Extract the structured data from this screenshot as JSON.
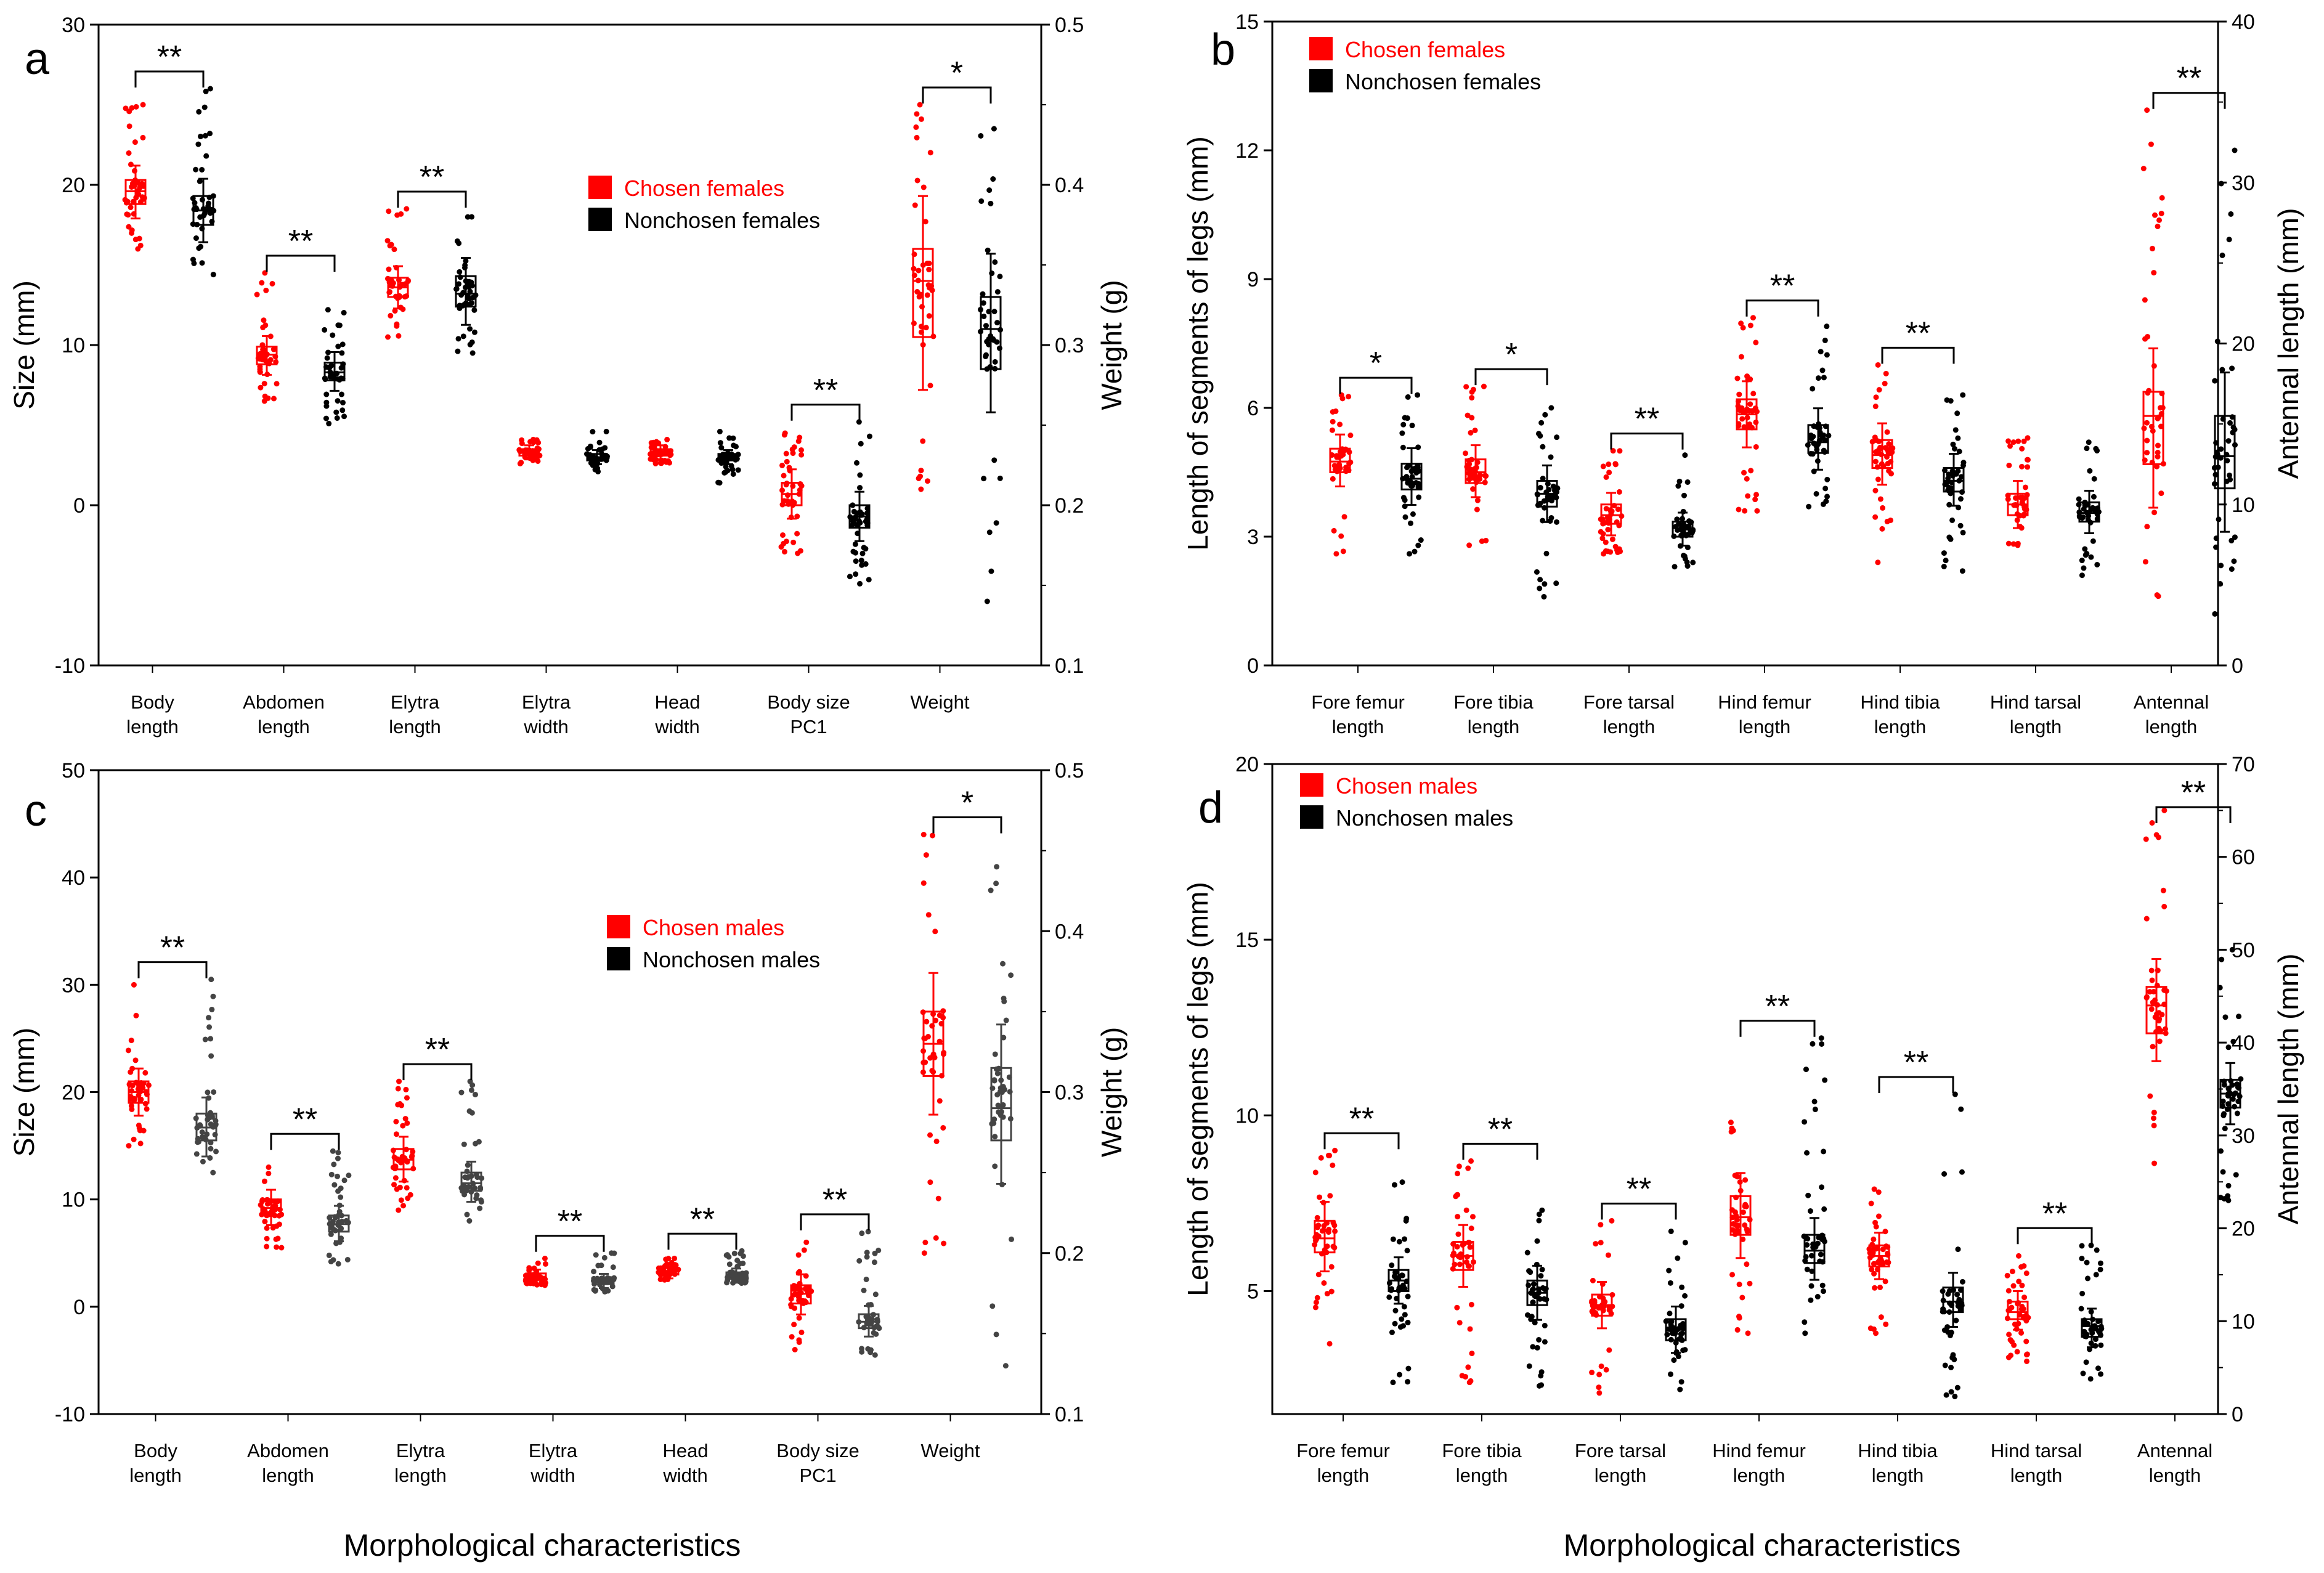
{
  "figure": {
    "xlabel_bottom_left": "Morphological characteristics",
    "xlabel_bottom_right": "Morphological characteristics"
  },
  "colors": {
    "chosen": "#ff0000",
    "nonchosen": "#000000",
    "nonchosen_c": "#444444"
  },
  "chart_data": [
    {
      "id": "a",
      "type": "box-scatter",
      "panel_label": "a",
      "ylabel": "Size (mm)",
      "y2label": "Weight (g)",
      "ylim": [
        -10,
        30
      ],
      "yticks": [
        -10,
        0,
        10,
        20,
        30
      ],
      "y2lim": [
        0.1,
        0.5
      ],
      "y2ticks": [
        0.1,
        0.2,
        0.3,
        0.4,
        0.5
      ],
      "legend": [
        "Chosen females",
        "Nonchosen females"
      ],
      "categories": [
        "Body\nlength",
        "Abdomen\nlength",
        "Elytra\nlength",
        "Elytra\nwidth",
        "Head\nwidth",
        "Body size\nPC1",
        "Weight"
      ],
      "secondary_categories": [
        6
      ],
      "series": [
        {
          "name": "Chosen females",
          "boxes": [
            [
              18.8,
              19.6,
              20.3,
              16,
              25
            ],
            [
              8.8,
              9.4,
              9.9,
              6.5,
              14.5
            ],
            [
              13,
              13.6,
              14.2,
              10.5,
              18.5
            ],
            [
              3.1,
              3.3,
              3.5,
              2.6,
              4.1
            ],
            [
              3.1,
              3.3,
              3.5,
              2.6,
              4.1
            ],
            [
              0,
              0.7,
              1.4,
              -3,
              4.5
            ],
            [
              0.305,
              0.34,
              0.36,
              0.21,
              0.45
            ]
          ]
        },
        {
          "name": "Nonchosen females",
          "boxes": [
            [
              17.5,
              18.4,
              19.3,
              14.4,
              26
            ],
            [
              7.8,
              8.3,
              8.9,
              5.1,
              12.2
            ],
            [
              12.4,
              13.2,
              14.3,
              9.5,
              18
            ],
            [
              2.8,
              3,
              3.2,
              2.1,
              4.6
            ],
            [
              2.8,
              3,
              3.2,
              1.4,
              4.6
            ],
            [
              -1.4,
              -0.7,
              0,
              -4.9,
              5.2
            ],
            [
              0.285,
              0.31,
              0.33,
              0.14,
              0.435
            ]
          ]
        }
      ],
      "annotations": [
        {
          "cat": 0,
          "text": "**"
        },
        {
          "cat": 1,
          "text": "**"
        },
        {
          "cat": 2,
          "text": "**"
        },
        {
          "cat": 5,
          "text": "**"
        },
        {
          "cat": 6,
          "text": "*"
        }
      ]
    },
    {
      "id": "b",
      "type": "box-scatter",
      "panel_label": "b",
      "ylabel": "Length of segments of legs (mm)",
      "y2label": "Antennal length (mm)",
      "ylim": [
        0,
        15
      ],
      "yticks": [
        0,
        3,
        6,
        9,
        12,
        15
      ],
      "y2lim": [
        0,
        40
      ],
      "y2ticks": [
        0,
        10,
        20,
        30,
        40
      ],
      "legend": [
        "Chosen females",
        "Nonchosen females"
      ],
      "categories": [
        "Fore femur\nlength",
        "Fore tibia\nlength",
        "Fore tarsal\nlength",
        "Hind femur\nlength",
        "Hind tibia\nlength",
        "Hind tarsal\nlength",
        "Antennal\nlength"
      ],
      "secondary_categories": [
        6
      ],
      "series": [
        {
          "name": "Chosen females",
          "boxes": [
            [
              4.5,
              4.75,
              5.05,
              2.6,
              6.3
            ],
            [
              4.25,
              4.5,
              4.8,
              2.8,
              6.5
            ],
            [
              3.3,
              3.5,
              3.75,
              2.6,
              5
            ],
            [
              5.5,
              5.85,
              6.2,
              3.6,
              8.1
            ],
            [
              4.6,
              4.9,
              5.25,
              2.4,
              7
            ],
            [
              3.5,
              3.75,
              4,
              2.8,
              5.3
            ],
            [
              12.5,
              15.5,
              17,
              4.3,
              34.5
            ]
          ]
        },
        {
          "name": "Nonchosen females",
          "boxes": [
            [
              4.1,
              4.35,
              4.7,
              2.6,
              6.3
            ],
            [
              3.7,
              4,
              4.3,
              1.6,
              6
            ],
            [
              3,
              3.2,
              3.35,
              2.3,
              4.9
            ],
            [
              4.95,
              5.2,
              5.6,
              3.7,
              7.9
            ],
            [
              4.05,
              4.3,
              4.6,
              2.2,
              6.3
            ],
            [
              3.35,
              3.55,
              3.8,
              2.1,
              5.2
            ],
            [
              11,
              13,
              15.5,
              3.2,
              32
            ]
          ]
        }
      ],
      "annotations": [
        {
          "cat": 0,
          "text": "*"
        },
        {
          "cat": 1,
          "text": "*"
        },
        {
          "cat": 2,
          "text": "**"
        },
        {
          "cat": 3,
          "text": "**"
        },
        {
          "cat": 4,
          "text": "**"
        },
        {
          "cat": 6,
          "text": "**"
        }
      ]
    },
    {
      "id": "c",
      "type": "box-scatter",
      "panel_label": "c",
      "ylabel": "Size (mm)",
      "y2label": "Weight (g)",
      "ylim": [
        -10,
        50
      ],
      "yticks": [
        -10,
        0,
        10,
        20,
        30,
        40,
        50
      ],
      "y2lim": [
        0.1,
        0.5
      ],
      "y2ticks": [
        0.1,
        0.2,
        0.3,
        0.4,
        0.5
      ],
      "legend": [
        "Chosen males",
        "Nonchosen males"
      ],
      "categories": [
        "Body\nlength",
        "Abdomen\nlength",
        "Elytra\nlength",
        "Elytra\nwidth",
        "Head\nwidth",
        "Body size\nPC1",
        "Weight"
      ],
      "secondary_categories": [
        6
      ],
      "series": [
        {
          "name": "Chosen males",
          "boxes": [
            [
              19,
              20,
              21,
              15,
              30
            ],
            [
              8.5,
              9.2,
              10,
              5.5,
              13
            ],
            [
              12.8,
              13.7,
              14.7,
              9,
              21
            ],
            [
              2.5,
              2.8,
              3.1,
              2,
              4.5
            ],
            [
              3,
              3.3,
              3.6,
              2.5,
              4.5
            ],
            [
              0.3,
              1.2,
              2,
              -4,
              6
            ],
            [
              0.31,
              0.33,
              0.35,
              0.2,
              0.46
            ]
          ]
        },
        {
          "name": "Nonchosen males",
          "boxes": [
            [
              15.5,
              16.7,
              18,
              12.5,
              30.5
            ],
            [
              7,
              7.7,
              8.5,
              4,
              14.5
            ],
            [
              10.8,
              11.5,
              12.5,
              8,
              21
            ],
            [
              2.1,
              2.4,
              2.7,
              1.4,
              5
            ],
            [
              2.6,
              2.9,
              3.2,
              2.2,
              5.2
            ],
            [
              -2,
              -1.4,
              -0.7,
              -4.5,
              7
            ],
            [
              0.27,
              0.29,
              0.315,
              0.13,
              0.44
            ]
          ]
        }
      ],
      "annotations": [
        {
          "cat": 0,
          "text": "**"
        },
        {
          "cat": 1,
          "text": "**"
        },
        {
          "cat": 2,
          "text": "**"
        },
        {
          "cat": 3,
          "text": "**"
        },
        {
          "cat": 4,
          "text": "**"
        },
        {
          "cat": 5,
          "text": "**"
        },
        {
          "cat": 6,
          "text": "*"
        }
      ]
    },
    {
      "id": "d",
      "type": "box-scatter",
      "panel_label": "d",
      "ylabel": "Length of segments of legs (mm)",
      "y2label": "Antennal length (mm)",
      "ylim": [
        1.5,
        20
      ],
      "yticks": [
        5,
        10,
        15,
        20
      ],
      "y2lim": [
        0,
        70
      ],
      "y2ticks": [
        0,
        10,
        20,
        30,
        40,
        50,
        60,
        70
      ],
      "legend": [
        "Chosen males",
        "Nonchosen males"
      ],
      "categories": [
        "Fore femur\nlength",
        "Fore tibia\nlength",
        "Fore tarsal\nlength",
        "Hind femur\nlength",
        "Hind tibia\nlength",
        "Hind tarsal\nlength",
        "Antennal\nlength"
      ],
      "secondary_categories": [
        6
      ],
      "series": [
        {
          "name": "Chosen males",
          "boxes": [
            [
              6.1,
              6.5,
              7,
              3.5,
              9
            ],
            [
              5.6,
              6,
              6.4,
              2.4,
              8.7
            ],
            [
              4.3,
              4.6,
              4.9,
              2.1,
              7
            ],
            [
              6.6,
              7.1,
              7.7,
              3.8,
              9.8
            ],
            [
              5.7,
              6,
              6.3,
              3.8,
              7.9
            ],
            [
              4.2,
              4.4,
              4.7,
              3,
              6
            ],
            [
              41,
              44,
              46,
              27,
              65
            ]
          ]
        },
        {
          "name": "Nonchosen males",
          "boxes": [
            [
              5,
              5.3,
              5.6,
              2.4,
              8.1
            ],
            [
              4.6,
              4.95,
              5.3,
              2.3,
              7.3
            ],
            [
              3.6,
              3.9,
              4.2,
              2.2,
              6.7
            ],
            [
              5.8,
              6.15,
              6.6,
              3.8,
              12.2
            ],
            [
              4.4,
              4.7,
              5.1,
              2,
              10.6
            ],
            [
              3.7,
              4,
              4.2,
              2.5,
              6.3
            ],
            [
              33,
              34.5,
              36,
              23,
              50
            ]
          ]
        }
      ],
      "annotations": [
        {
          "cat": 0,
          "text": "**"
        },
        {
          "cat": 1,
          "text": "**"
        },
        {
          "cat": 2,
          "text": "**"
        },
        {
          "cat": 3,
          "text": "**"
        },
        {
          "cat": 4,
          "text": "**"
        },
        {
          "cat": 5,
          "text": "**"
        },
        {
          "cat": 6,
          "text": "**"
        }
      ]
    }
  ]
}
